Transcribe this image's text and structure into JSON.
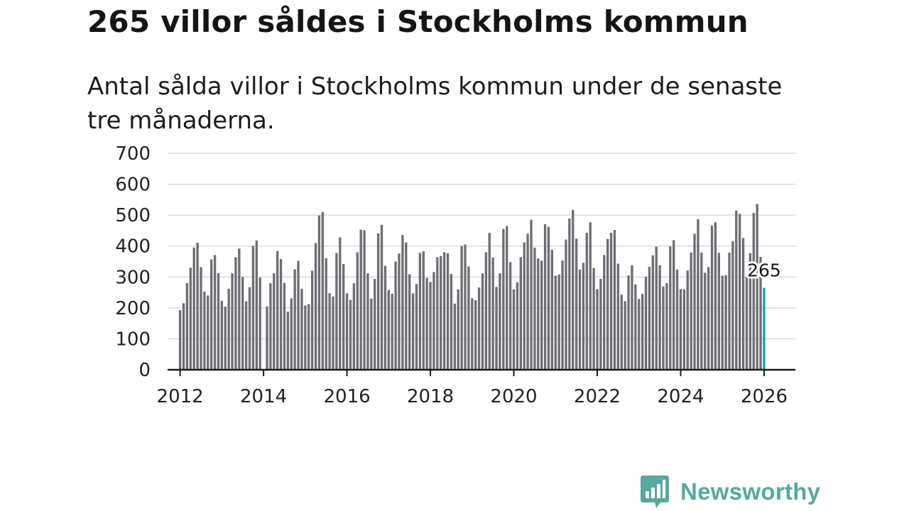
{
  "header": {
    "title": "265 villor såldes i Stockholms kommun",
    "subtitle": "Antal sålda villor i Stockholms kommun under de senaste tre månaderna."
  },
  "brand": {
    "name": "Newsworthy",
    "color": "#56a8a0",
    "icon": "bar-chart-speech-bubble-icon"
  },
  "colors": {
    "bar": "#6d6d74",
    "highlight": "#14a3a3",
    "grid": "#d9d9d9",
    "axis": "#1a1a1a"
  },
  "chart_data": {
    "type": "bar",
    "title": "265 villor såldes i Stockholms kommun",
    "xlabel": "",
    "ylabel": "",
    "ylim": [
      0,
      700
    ],
    "yticks": [
      0,
      100,
      200,
      300,
      400,
      500,
      600,
      700
    ],
    "xticks": [
      2012,
      2014,
      2016,
      2018,
      2020,
      2022,
      2024,
      2026
    ],
    "xlim": [
      2011.7,
      2026.75
    ],
    "start": {
      "year": 2012,
      "month": 1
    },
    "grid": true,
    "annotation": {
      "label": "265",
      "value": 265,
      "index": 168
    },
    "values": [
      193,
      215,
      280,
      330,
      395,
      411,
      332,
      253,
      240,
      357,
      371,
      313,
      223,
      204,
      262,
      312,
      364,
      392,
      300,
      221,
      267,
      401,
      418,
      298,
      0,
      205,
      280,
      312,
      384,
      358,
      281,
      188,
      231,
      325,
      352,
      262,
      208,
      212,
      320,
      410,
      499,
      510,
      361,
      248,
      237,
      378,
      428,
      342,
      247,
      226,
      280,
      380,
      453,
      451,
      312,
      230,
      294,
      441,
      469,
      336,
      258,
      246,
      350,
      376,
      436,
      412,
      309,
      247,
      277,
      378,
      383,
      297,
      284,
      316,
      364,
      368,
      380,
      377,
      310,
      214,
      260,
      400,
      405,
      334,
      231,
      225,
      266,
      312,
      380,
      443,
      363,
      268,
      312,
      455,
      465,
      348,
      260,
      283,
      364,
      412,
      440,
      485,
      395,
      360,
      353,
      471,
      462,
      388,
      304,
      308,
      353,
      421,
      489,
      517,
      424,
      324,
      346,
      443,
      477,
      329,
      261,
      294,
      371,
      423,
      443,
      452,
      343,
      243,
      222,
      305,
      338,
      276,
      229,
      245,
      301,
      333,
      370,
      398,
      338,
      269,
      280,
      399,
      419,
      324,
      261,
      260,
      321,
      379,
      440,
      487,
      379,
      314,
      332,
      466,
      477,
      378,
      304,
      306,
      379,
      416,
      515,
      504,
      426,
      301,
      377,
      507,
      536,
      365,
      265
    ]
  }
}
